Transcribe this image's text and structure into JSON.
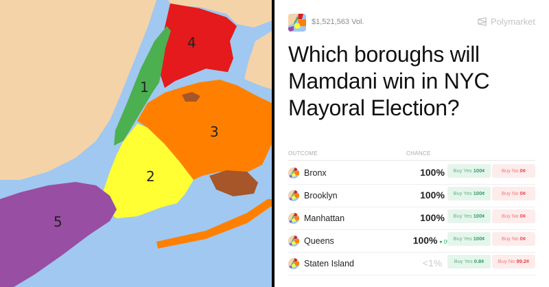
{
  "map": {
    "labels": [
      "1",
      "2",
      "3",
      "4",
      "5"
    ],
    "colors": {
      "water": "#a0c8f0",
      "land": "#f5d3a8",
      "manhattan": "#4caf50",
      "brooklyn": "#ffff33",
      "queens": "#ff8000",
      "bronx": "#e41a1c",
      "staten_island": "#984ea3",
      "airport": "#a65628"
    }
  },
  "header": {
    "volume": "$1,521,563 Vol.",
    "brand": "Polymarket",
    "brand_icon": "polymarket-logo-icon"
  },
  "title": "Which boroughs will Mamdani win in NYC Mayoral Election?",
  "table": {
    "col_outcome": "OUTCOME",
    "col_chance": "CHANCE",
    "rows": [
      {
        "name": "Bronx",
        "chance": "100%",
        "delta": "",
        "yes_label": "Buy Yes",
        "yes_price": "100¢",
        "no_label": "Buy No",
        "no_price": "0¢"
      },
      {
        "name": "Brooklyn",
        "chance": "100%",
        "delta": "",
        "yes_label": "Buy Yes",
        "yes_price": "100¢",
        "no_label": "Buy No",
        "no_price": "0¢"
      },
      {
        "name": "Manhattan",
        "chance": "100%",
        "delta": "",
        "yes_label": "Buy Yes",
        "yes_price": "100¢",
        "no_label": "Buy No",
        "no_price": "0¢"
      },
      {
        "name": "Queens",
        "chance": "100%",
        "delta": "▾ 0%",
        "yes_label": "Buy Yes",
        "yes_price": "100¢",
        "no_label": "Buy No",
        "no_price": "0¢"
      },
      {
        "name": "Staten Island",
        "chance": "<1%",
        "delta": "",
        "yes_label": "Buy Yes",
        "yes_price": "0.8¢",
        "no_label": "Buy No",
        "no_price": "99.2¢"
      }
    ]
  }
}
